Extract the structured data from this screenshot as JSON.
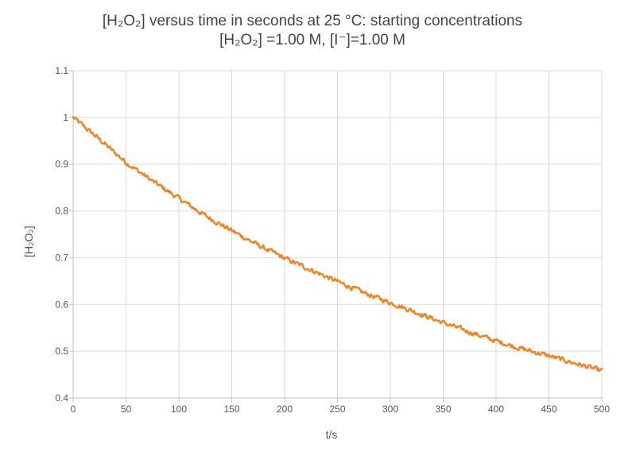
{
  "chart_data": {
    "type": "line",
    "title_line1": "[H₂O₂] versus time in seconds at 25 °C: starting concentrations",
    "title_line2": "[H₂O₂] =1.00 M, [I⁻]=1.00 M",
    "xlabel": "t/s",
    "ylabel": "[H₂O₂]",
    "xlim": [
      0,
      500
    ],
    "ylim": [
      0.4,
      1.1
    ],
    "x_ticks": [
      "0",
      "50",
      "100",
      "150",
      "200",
      "250",
      "300",
      "350",
      "400",
      "450",
      "500"
    ],
    "y_ticks": [
      "0.4",
      "0.5",
      "0.6",
      "0.7",
      "0.8",
      "0.9",
      "1",
      "1.1"
    ],
    "grid": true,
    "legend": "none",
    "series": [
      {
        "color": "#F5821F",
        "x": [
          0,
          25,
          50,
          75,
          100,
          125,
          150,
          175,
          200,
          225,
          250,
          275,
          300,
          325,
          350,
          375,
          400,
          425,
          450,
          475,
          500
        ],
        "y": [
          1.0,
          0.953,
          0.904,
          0.864,
          0.827,
          0.79,
          0.758,
          0.727,
          0.699,
          0.674,
          0.649,
          0.625,
          0.604,
          0.583,
          0.561,
          0.541,
          0.522,
          0.505,
          0.49,
          0.474,
          0.458
        ],
        "noise_amplitude": 0.008
      }
    ]
  }
}
